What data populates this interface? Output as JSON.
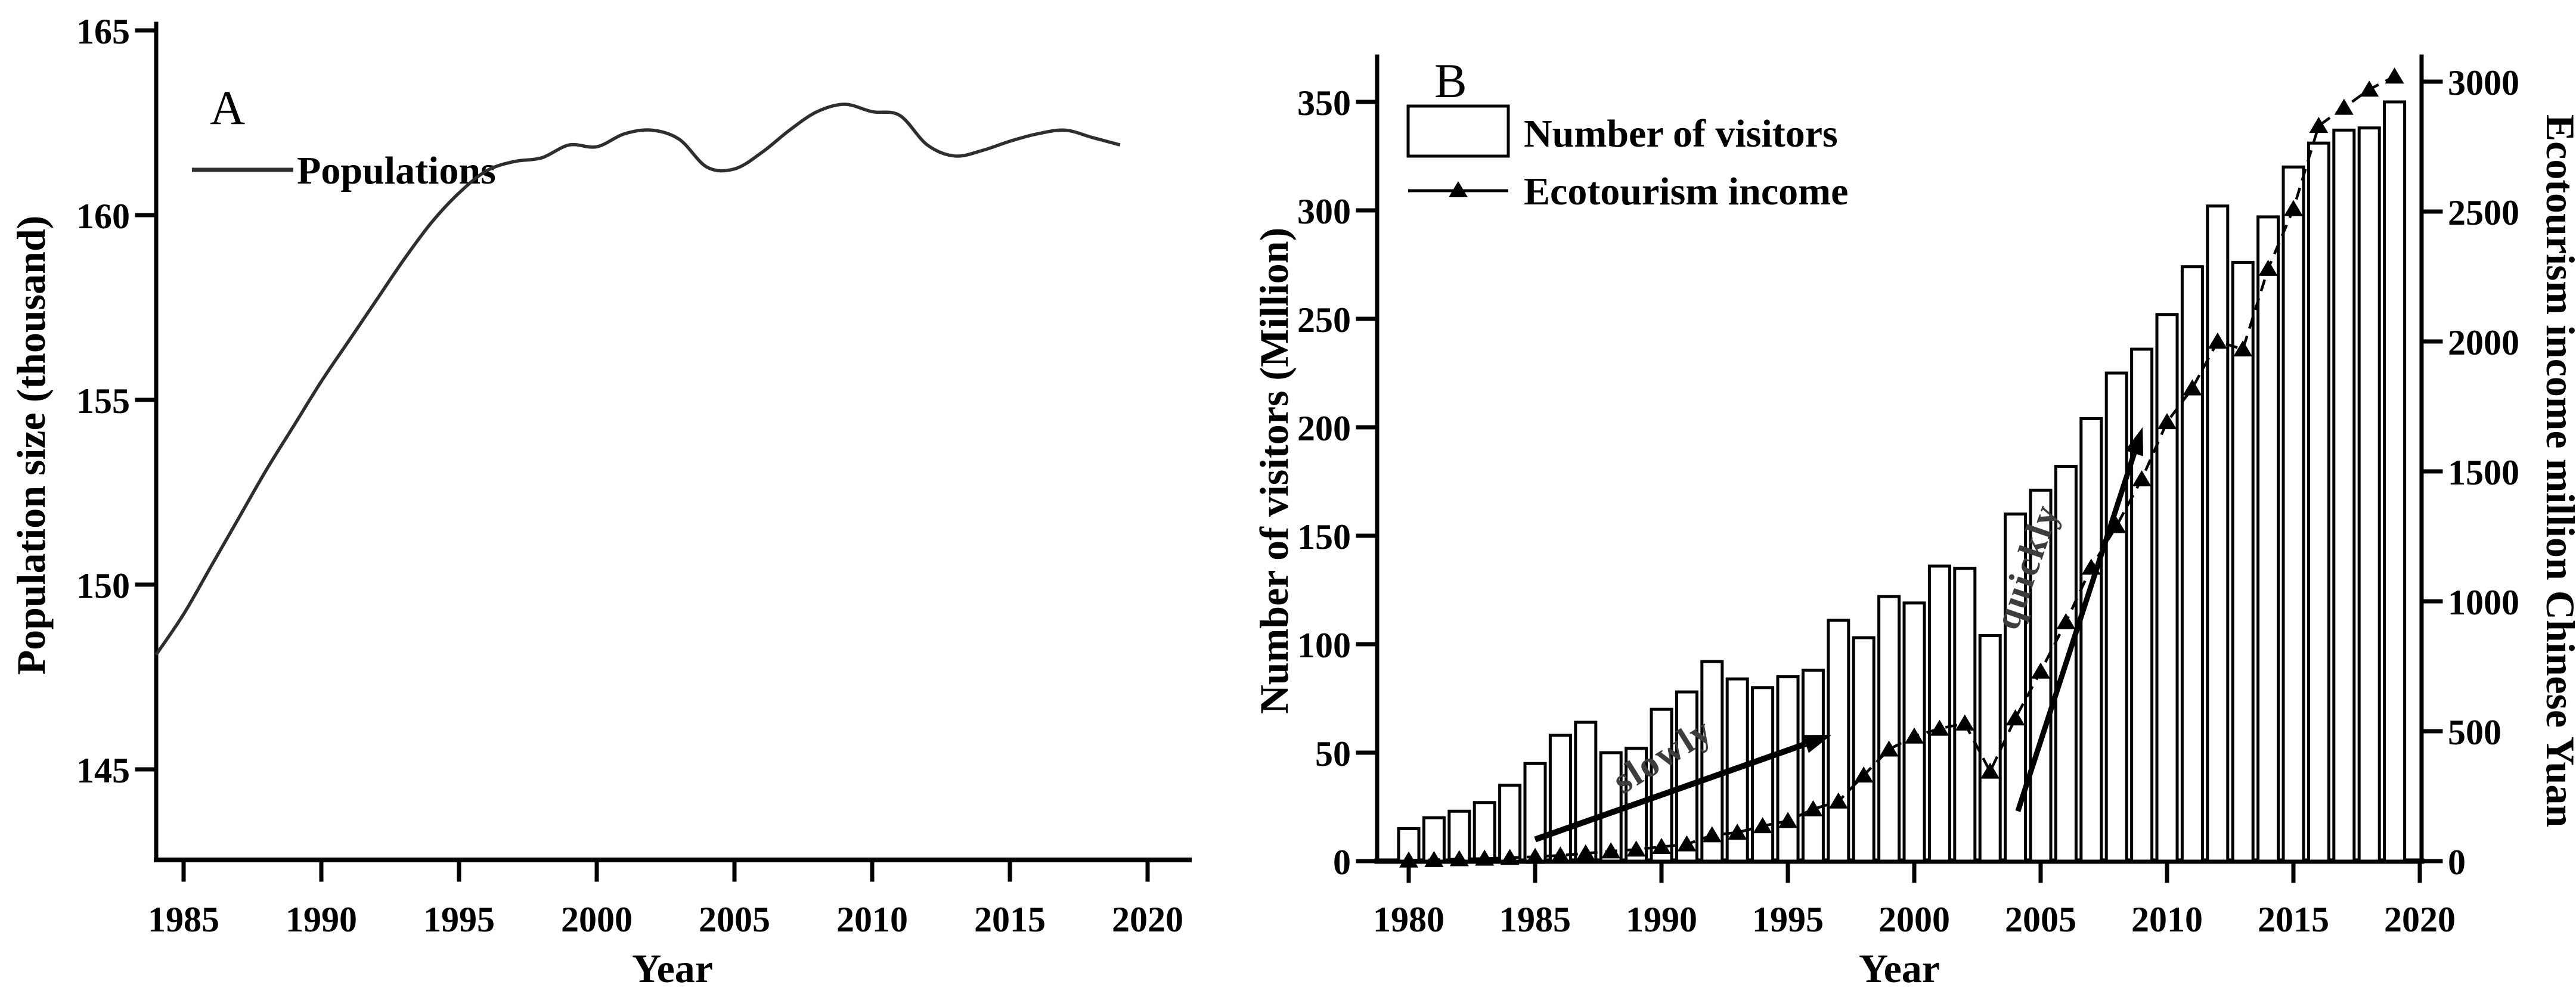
{
  "colors": {
    "ink": "#000000",
    "population_line": "#2e2e2e",
    "annotation_text": "#3d3d3d",
    "background": "#ffffff"
  },
  "chart_data": [
    {
      "type": "line",
      "panel_label": "A",
      "xlabel": "Year",
      "ylabel": "Population size (thousand)",
      "x_ticks": [
        1985,
        1990,
        1995,
        2000,
        2005,
        2010,
        2015,
        2020
      ],
      "y_ticks": [
        145,
        150,
        155,
        160,
        165
      ],
      "x_range": [
        1984,
        2021.4
      ],
      "y_range": [
        142.5,
        165.35
      ],
      "grid": false,
      "legend_position": "top-left",
      "legend": [
        {
          "label": "Populations",
          "marker": "line"
        }
      ],
      "series": [
        {
          "name": "Populations",
          "x": [
            1984,
            1985,
            1986,
            1987,
            1988,
            1989,
            1990,
            1991,
            1992,
            1993,
            1994,
            1995,
            1996,
            1997,
            1998,
            1999,
            2000,
            2001,
            2002,
            2003,
            2004,
            2005,
            2006,
            2007,
            2008,
            2009,
            2010,
            2011,
            2012,
            2013,
            2014,
            2015,
            2016,
            2017,
            2018,
            2019
          ],
          "y": [
            148.1,
            149.2,
            150.5,
            151.8,
            153.1,
            154.3,
            155.5,
            156.6,
            157.7,
            158.8,
            159.8,
            160.6,
            161.2,
            161.45,
            161.55,
            161.9,
            161.85,
            162.2,
            162.3,
            162.05,
            161.3,
            161.25,
            161.7,
            162.3,
            162.8,
            163.0,
            162.8,
            162.7,
            161.9,
            161.6,
            161.75,
            162.0,
            162.2,
            162.3,
            162.1,
            161.9
          ]
        }
      ]
    },
    {
      "type": "bar",
      "panel_label": "B",
      "xlabel": "Year",
      "ylabel_left": "Number of visitors (Million)",
      "ylabel_right": "Ecotourism income million Chinese Yuan",
      "x_ticks": [
        1980,
        1985,
        1990,
        1995,
        2000,
        2005,
        2010,
        2015,
        2020
      ],
      "y_left_ticks": [
        0,
        50,
        100,
        150,
        200,
        250,
        300,
        350
      ],
      "y_right_ticks": [
        0,
        500,
        1000,
        1500,
        2000,
        2500,
        3000
      ],
      "x_range": [
        1978.7,
        2020.1
      ],
      "y_left_range": [
        0,
        371
      ],
      "y_right_range": [
        0,
        3096
      ],
      "grid": false,
      "legend_position": "top-left",
      "legend": [
        {
          "label": "Number of visitors",
          "marker": "box"
        },
        {
          "label": "Ecotourism income",
          "marker": "line-triangle"
        }
      ],
      "categories": [
        1980,
        1981,
        1982,
        1983,
        1984,
        1985,
        1986,
        1987,
        1988,
        1989,
        1990,
        1991,
        1992,
        1993,
        1994,
        1995,
        1996,
        1997,
        1998,
        1999,
        2000,
        2001,
        2002,
        2003,
        2004,
        2005,
        2006,
        2007,
        2008,
        2009,
        2010,
        2011,
        2012,
        2013,
        2014,
        2015,
        2016,
        2017,
        2018,
        2019
      ],
      "series": [
        {
          "name": "Number of visitors",
          "type": "bar",
          "axis": "left",
          "values": [
            15,
            20,
            23,
            27,
            35,
            45,
            58,
            64,
            50,
            52,
            70,
            78,
            92,
            84,
            80,
            85,
            88,
            111,
            103,
            122,
            119,
            136,
            135,
            104,
            160,
            171,
            182,
            204,
            225,
            236,
            252,
            274,
            302,
            276,
            297,
            320,
            331,
            337,
            338,
            350
          ]
        },
        {
          "name": "Ecotourism income",
          "type": "line",
          "axis": "right",
          "marker": "triangle",
          "values": [
            3,
            5,
            8,
            10,
            13,
            17,
            22,
            30,
            38,
            45,
            55,
            65,
            100,
            110,
            135,
            155,
            200,
            230,
            330,
            430,
            480,
            510,
            530,
            345,
            550,
            730,
            920,
            1130,
            1290,
            1470,
            1690,
            1820,
            2000,
            1970,
            2280,
            2510,
            2830,
            2900,
            2970,
            3020
          ]
        }
      ],
      "annotations": [
        {
          "text": "slowly",
          "x1": 1985.0,
          "y1": 10,
          "x2": 1995.7,
          "y2": 54,
          "text_x": 1990.3,
          "text_y": 44,
          "angle": -32
        },
        {
          "text": "quickly",
          "x1": 2004.1,
          "y1": 23,
          "x2": 2008.7,
          "y2": 188,
          "text_x": 2004.9,
          "text_y": 134,
          "angle": -71
        }
      ]
    }
  ]
}
